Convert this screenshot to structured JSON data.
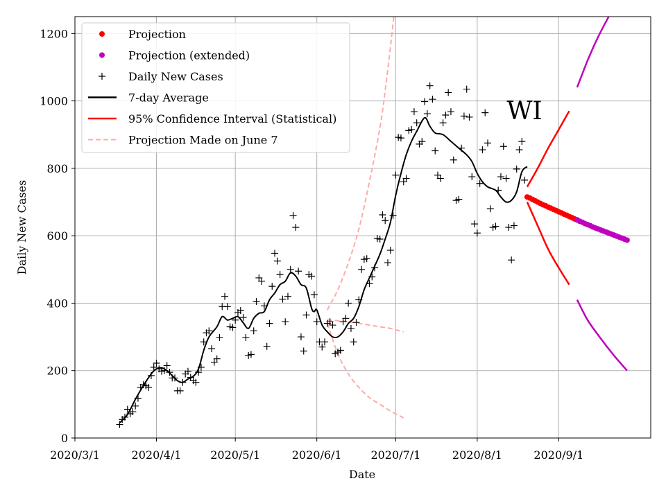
{
  "chart_data": {
    "type": "line",
    "title": "",
    "annotation": "WI",
    "xlabel": "Date",
    "ylabel": "Daily New Cases",
    "x_domain_days": [
      0,
      219
    ],
    "ylim": [
      0,
      1250
    ],
    "grid": true,
    "legend_position": "top-left",
    "x_ticks": [
      {
        "label": "2020/3/1",
        "day": 0
      },
      {
        "label": "2020/4/1",
        "day": 31
      },
      {
        "label": "2020/5/1",
        "day": 61
      },
      {
        "label": "2020/6/1",
        "day": 92
      },
      {
        "label": "2020/7/1",
        "day": 122
      },
      {
        "label": "2020/8/1",
        "day": 153
      },
      {
        "label": "2020/9/1",
        "day": 184
      }
    ],
    "y_ticks": [
      0,
      200,
      400,
      600,
      800,
      1000,
      1200
    ],
    "legend": [
      {
        "label": "Projection",
        "color": "#ff0000",
        "style": "dot"
      },
      {
        "label": "Projection (extended)",
        "color": "#bf00bf",
        "style": "dot"
      },
      {
        "label": "Daily New Cases",
        "color": "#000000",
        "style": "plus"
      },
      {
        "label": "7-day Average",
        "color": "#000000",
        "style": "line"
      },
      {
        "label": "95% Confidence Interval (Statistical)",
        "color": "#ff0000",
        "style": "line"
      },
      {
        "label": "Projection Made on June 7",
        "color": "#ffaaaa",
        "style": "dashed"
      }
    ],
    "daily_cases": [
      [
        17,
        40
      ],
      [
        18,
        55
      ],
      [
        19,
        62
      ],
      [
        20,
        85
      ],
      [
        21,
        72
      ],
      [
        22,
        78
      ],
      [
        23,
        95
      ],
      [
        24,
        118
      ],
      [
        25,
        150
      ],
      [
        26,
        158
      ],
      [
        27,
        155
      ],
      [
        28,
        150
      ],
      [
        29,
        185
      ],
      [
        30,
        210
      ],
      [
        31,
        222
      ],
      [
        32,
        205
      ],
      [
        33,
        198
      ],
      [
        34,
        200
      ],
      [
        35,
        215
      ],
      [
        36,
        195
      ],
      [
        37,
        178
      ],
      [
        38,
        178
      ],
      [
        39,
        140
      ],
      [
        40,
        140
      ],
      [
        41,
        165
      ],
      [
        42,
        190
      ],
      [
        43,
        198
      ],
      [
        44,
        180
      ],
      [
        45,
        170
      ],
      [
        46,
        165
      ],
      [
        47,
        195
      ],
      [
        48,
        210
      ],
      [
        49,
        285
      ],
      [
        50,
        312
      ],
      [
        51,
        318
      ],
      [
        52,
        265
      ],
      [
        53,
        225
      ],
      [
        54,
        235
      ],
      [
        55,
        298
      ],
      [
        56,
        390
      ],
      [
        57,
        420
      ],
      [
        58,
        390
      ],
      [
        59,
        330
      ],
      [
        60,
        328
      ],
      [
        61,
        350
      ],
      [
        62,
        372
      ],
      [
        63,
        378
      ],
      [
        64,
        358
      ],
      [
        65,
        298
      ],
      [
        66,
        245
      ],
      [
        67,
        248
      ],
      [
        68,
        318
      ],
      [
        69,
        405
      ],
      [
        70,
        475
      ],
      [
        71,
        465
      ],
      [
        72,
        392
      ],
      [
        73,
        272
      ],
      [
        74,
        340
      ],
      [
        75,
        450
      ],
      [
        76,
        548
      ],
      [
        77,
        525
      ],
      [
        78,
        485
      ],
      [
        79,
        412
      ],
      [
        80,
        345
      ],
      [
        81,
        420
      ],
      [
        82,
        500
      ],
      [
        83,
        660
      ],
      [
        84,
        625
      ],
      [
        85,
        495
      ],
      [
        86,
        300
      ],
      [
        87,
        258
      ],
      [
        88,
        365
      ],
      [
        89,
        485
      ],
      [
        90,
        480
      ],
      [
        91,
        425
      ],
      [
        92,
        345
      ],
      [
        93,
        285
      ],
      [
        94,
        270
      ],
      [
        95,
        285
      ],
      [
        96,
        340
      ],
      [
        97,
        345
      ],
      [
        98,
        335
      ],
      [
        99,
        250
      ],
      [
        100,
        255
      ],
      [
        101,
        260
      ],
      [
        102,
        345
      ],
      [
        103,
        355
      ],
      [
        104,
        400
      ],
      [
        105,
        325
      ],
      [
        106,
        285
      ],
      [
        107,
        343
      ],
      [
        108,
        410
      ],
      [
        109,
        500
      ],
      [
        110,
        530
      ],
      [
        111,
        532
      ],
      [
        112,
        458
      ],
      [
        113,
        478
      ],
      [
        114,
        505
      ],
      [
        115,
        592
      ],
      [
        116,
        590
      ],
      [
        117,
        662
      ],
      [
        118,
        645
      ],
      [
        119,
        520
      ],
      [
        120,
        557
      ],
      [
        121,
        660
      ],
      [
        122,
        780
      ],
      [
        123,
        892
      ],
      [
        124,
        890
      ],
      [
        125,
        760
      ],
      [
        126,
        770
      ],
      [
        127,
        912
      ],
      [
        128,
        915
      ],
      [
        129,
        968
      ],
      [
        130,
        935
      ],
      [
        131,
        872
      ],
      [
        132,
        880
      ],
      [
        133,
        998
      ],
      [
        134,
        962
      ],
      [
        135,
        1045
      ],
      [
        136,
        1005
      ],
      [
        137,
        852
      ],
      [
        138,
        780
      ],
      [
        139,
        770
      ],
      [
        140,
        935
      ],
      [
        141,
        958
      ],
      [
        142,
        1025
      ],
      [
        143,
        968
      ],
      [
        144,
        825
      ],
      [
        145,
        705
      ],
      [
        146,
        708
      ],
      [
        147,
        860
      ],
      [
        148,
        955
      ],
      [
        149,
        1035
      ],
      [
        150,
        952
      ],
      [
        151,
        775
      ],
      [
        152,
        635
      ],
      [
        153,
        608
      ],
      [
        154,
        755
      ],
      [
        155,
        855
      ],
      [
        156,
        965
      ],
      [
        157,
        875
      ],
      [
        158,
        680
      ],
      [
        159,
        625
      ],
      [
        160,
        628
      ],
      [
        161,
        735
      ],
      [
        162,
        775
      ],
      [
        163,
        865
      ],
      [
        164,
        770
      ],
      [
        165,
        625
      ],
      [
        166,
        528
      ],
      [
        167,
        630
      ],
      [
        168,
        798
      ],
      [
        169,
        855
      ],
      [
        170,
        880
      ],
      [
        171,
        765
      ]
    ],
    "seven_day_average": [
      [
        17,
        45
      ],
      [
        20,
        70
      ],
      [
        23,
        115
      ],
      [
        26,
        155
      ],
      [
        29,
        190
      ],
      [
        31,
        205
      ],
      [
        33,
        208
      ],
      [
        35,
        200
      ],
      [
        37,
        185
      ],
      [
        39,
        170
      ],
      [
        41,
        165
      ],
      [
        43,
        175
      ],
      [
        45,
        183
      ],
      [
        47,
        205
      ],
      [
        49,
        260
      ],
      [
        51,
        300
      ],
      [
        54,
        330
      ],
      [
        56,
        360
      ],
      [
        58,
        350
      ],
      [
        60,
        355
      ],
      [
        62,
        360
      ],
      [
        64,
        342
      ],
      [
        66,
        325
      ],
      [
        68,
        355
      ],
      [
        70,
        370
      ],
      [
        72,
        375
      ],
      [
        74,
        410
      ],
      [
        76,
        430
      ],
      [
        78,
        455
      ],
      [
        80,
        465
      ],
      [
        82,
        490
      ],
      [
        84,
        480
      ],
      [
        86,
        455
      ],
      [
        88,
        445
      ],
      [
        90,
        385
      ],
      [
        91,
        375
      ],
      [
        92,
        380
      ],
      [
        94,
        335
      ],
      [
        96,
        315
      ],
      [
        98,
        300
      ],
      [
        100,
        300
      ],
      [
        102,
        315
      ],
      [
        104,
        340
      ],
      [
        106,
        355
      ],
      [
        108,
        390
      ],
      [
        110,
        440
      ],
      [
        112,
        475
      ],
      [
        114,
        510
      ],
      [
        116,
        545
      ],
      [
        118,
        590
      ],
      [
        120,
        640
      ],
      [
        122,
        720
      ],
      [
        124,
        785
      ],
      [
        126,
        840
      ],
      [
        128,
        880
      ],
      [
        130,
        910
      ],
      [
        133,
        950
      ],
      [
        135,
        925
      ],
      [
        137,
        905
      ],
      [
        140,
        900
      ],
      [
        143,
        880
      ],
      [
        146,
        860
      ],
      [
        149,
        840
      ],
      [
        151,
        820
      ],
      [
        153,
        785
      ],
      [
        155,
        760
      ],
      [
        157,
        745
      ],
      [
        160,
        735
      ],
      [
        162,
        715
      ],
      [
        164,
        700
      ],
      [
        166,
        705
      ],
      [
        168,
        730
      ],
      [
        170,
        790
      ],
      [
        172,
        805
      ]
    ],
    "projection": [
      [
        172,
        715
      ],
      [
        173,
        712
      ],
      [
        174,
        708
      ],
      [
        175,
        704
      ],
      [
        176,
        700
      ],
      [
        177,
        696
      ],
      [
        178,
        692
      ],
      [
        179,
        689
      ],
      [
        180,
        685
      ],
      [
        181,
        682
      ],
      [
        182,
        678
      ],
      [
        183,
        675
      ],
      [
        184,
        671
      ],
      [
        185,
        668
      ],
      [
        186,
        664
      ],
      [
        187,
        661
      ],
      [
        188,
        657
      ],
      [
        189,
        654
      ],
      [
        190,
        650
      ],
      [
        191,
        647
      ]
    ],
    "projection_extended": [
      [
        191,
        647
      ],
      [
        192,
        643
      ],
      [
        193,
        640
      ],
      [
        194,
        636
      ],
      [
        195,
        633
      ],
      [
        196,
        630
      ],
      [
        197,
        626
      ],
      [
        198,
        623
      ],
      [
        199,
        620
      ],
      [
        200,
        617
      ],
      [
        201,
        614
      ],
      [
        202,
        611
      ],
      [
        203,
        608
      ],
      [
        204,
        605
      ],
      [
        205,
        602
      ],
      [
        206,
        599
      ],
      [
        207,
        596
      ],
      [
        208,
        593
      ],
      [
        209,
        590
      ],
      [
        210,
        587
      ]
    ],
    "ci_upper": [
      [
        172,
        745
      ],
      [
        176,
        800
      ],
      [
        180,
        860
      ],
      [
        184,
        915
      ],
      [
        188,
        970
      ]
    ],
    "ci_lower": [
      [
        172,
        700
      ],
      [
        176,
        630
      ],
      [
        180,
        560
      ],
      [
        184,
        505
      ],
      [
        188,
        455
      ]
    ],
    "ci_upper_extended": [
      [
        191,
        1040
      ],
      [
        195,
        1120
      ],
      [
        199,
        1190
      ],
      [
        203,
        1250
      ]
    ],
    "ci_lower_extended": [
      [
        191,
        410
      ],
      [
        195,
        350
      ],
      [
        200,
        295
      ],
      [
        205,
        245
      ],
      [
        210,
        200
      ]
    ],
    "june7_projection_center": [
      [
        96,
        350
      ],
      [
        100,
        348
      ],
      [
        104,
        345
      ],
      [
        108,
        340
      ],
      [
        112,
        335
      ],
      [
        116,
        330
      ],
      [
        120,
        325
      ],
      [
        125,
        315
      ]
    ],
    "june7_projection_upper": [
      [
        96,
        380
      ],
      [
        100,
        440
      ],
      [
        104,
        520
      ],
      [
        108,
        620
      ],
      [
        112,
        760
      ],
      [
        116,
        920
      ],
      [
        118,
        1030
      ],
      [
        120,
        1160
      ],
      [
        122,
        1300
      ]
    ],
    "june7_projection_lower": [
      [
        96,
        340
      ],
      [
        100,
        250
      ],
      [
        104,
        190
      ],
      [
        108,
        150
      ],
      [
        112,
        120
      ],
      [
        116,
        100
      ],
      [
        120,
        80
      ],
      [
        125,
        60
      ]
    ]
  }
}
